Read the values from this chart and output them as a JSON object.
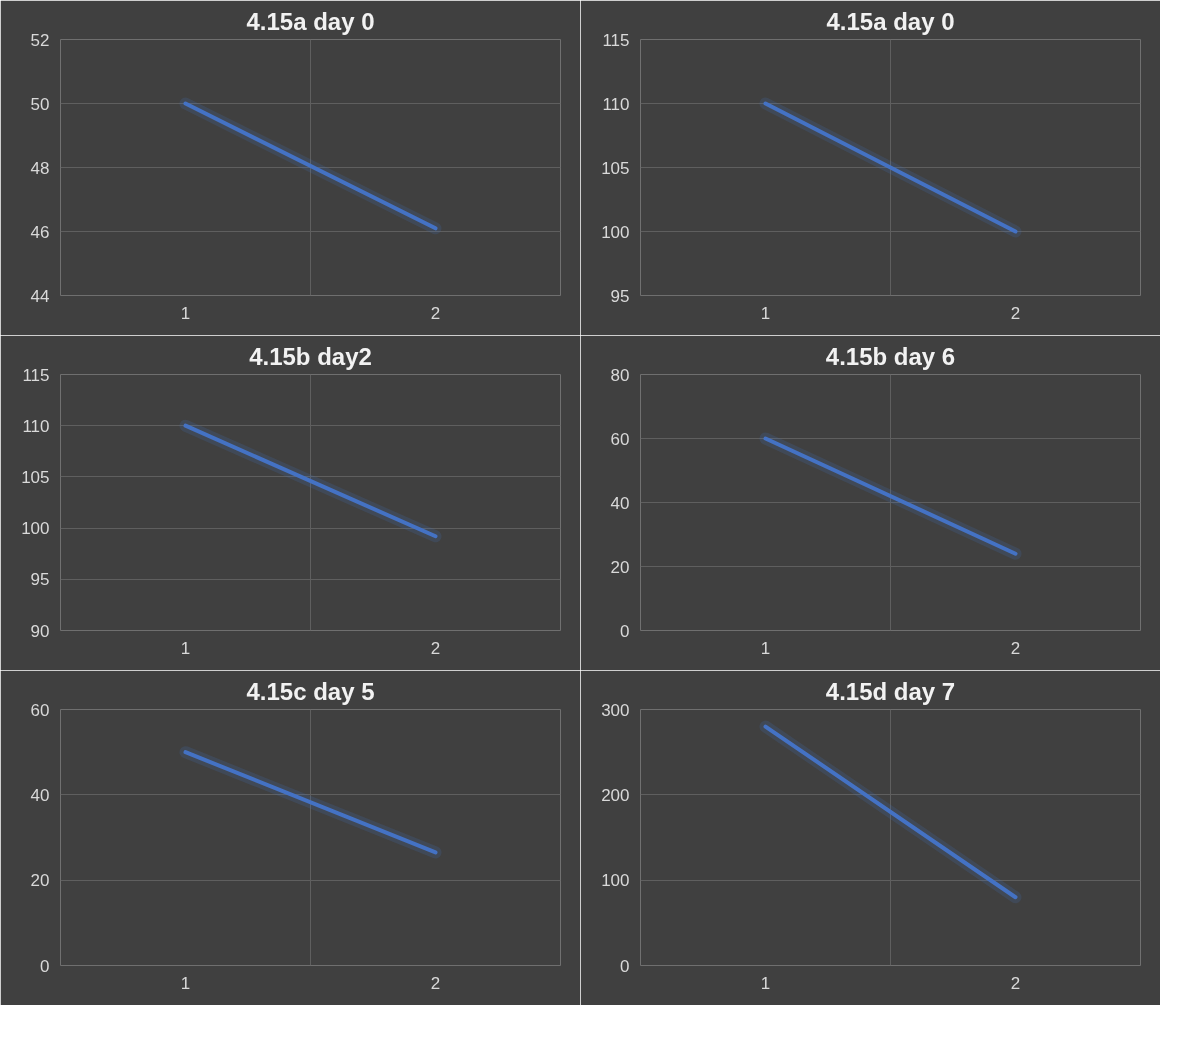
{
  "chart_data": [
    {
      "type": "line",
      "title": "4.15a day 0",
      "categories": [
        "1",
        "2"
      ],
      "series": [
        {
          "color": "#4472c4",
          "values": [
            50,
            46.1
          ]
        }
      ],
      "ylim": [
        44,
        52
      ],
      "yticks": [
        44,
        46,
        48,
        50,
        52
      ],
      "grid": true,
      "marker": "none"
    },
    {
      "type": "line",
      "title": "4.15a day 0",
      "categories": [
        "1",
        "2"
      ],
      "series": [
        {
          "color": "#4472c4",
          "values": [
            110,
            100
          ]
        }
      ],
      "ylim": [
        95,
        115
      ],
      "yticks": [
        95,
        100,
        105,
        110,
        115
      ],
      "grid": true,
      "marker": "none"
    },
    {
      "type": "line",
      "title": "4.15b day2",
      "categories": [
        "1",
        "2"
      ],
      "series": [
        {
          "color": "#4472c4",
          "values": [
            110,
            99.2
          ]
        }
      ],
      "ylim": [
        90,
        115
      ],
      "yticks": [
        90,
        95,
        100,
        105,
        110,
        115
      ],
      "grid": true,
      "marker": "none"
    },
    {
      "type": "line",
      "title": "4.15b day 6",
      "categories": [
        "1",
        "2"
      ],
      "series": [
        {
          "color": "#4472c4",
          "values": [
            60,
            24
          ]
        }
      ],
      "ylim": [
        0,
        80
      ],
      "yticks": [
        0,
        20,
        40,
        60,
        80
      ],
      "grid": true,
      "marker": "none"
    },
    {
      "type": "line",
      "title": "4.15c day 5",
      "categories": [
        "1",
        "2"
      ],
      "series": [
        {
          "color": "#4472c4",
          "values": [
            50,
            26.5
          ]
        }
      ],
      "ylim": [
        0,
        60
      ],
      "yticks": [
        0,
        20,
        40,
        60
      ],
      "grid": true,
      "marker": "none"
    },
    {
      "type": "line",
      "title": "4.15d day 7",
      "categories": [
        "1",
        "2"
      ],
      "series": [
        {
          "color": "#4472c4",
          "values": [
            280,
            80
          ]
        }
      ],
      "ylim": [
        0,
        300
      ],
      "yticks": [
        0,
        100,
        200,
        300
      ],
      "grid": true,
      "marker": "none"
    }
  ]
}
